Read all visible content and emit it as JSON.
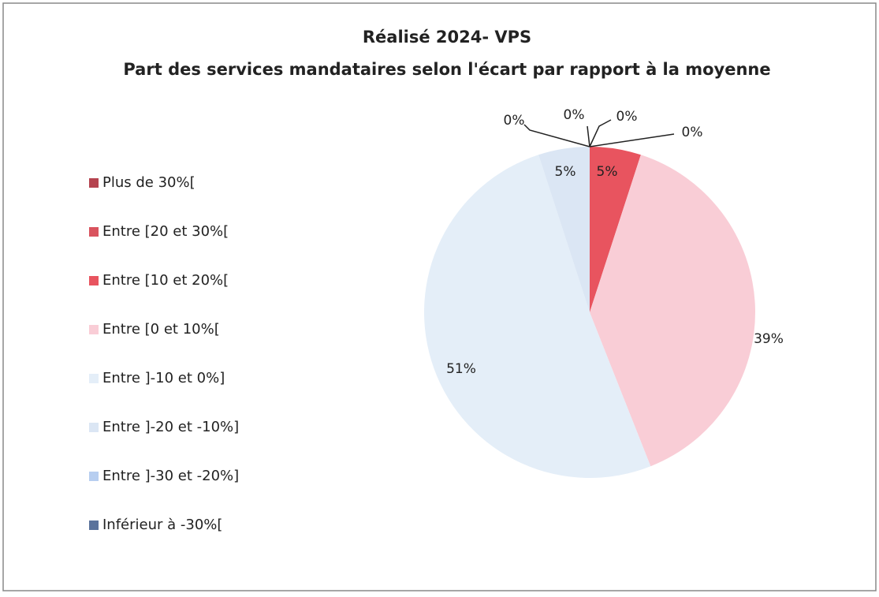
{
  "chart_data": {
    "type": "pie",
    "title": "Réalisé 2024- VPS",
    "subtitle": "Part des services mandataires selon l'écart par rapport à la moyenne",
    "categories": [
      "Plus de 30%[",
      "Entre [20 et 30%[",
      "Entre [10 et 20%[",
      "Entre [0 et 10%[",
      "Entre ]-10 et 0%]",
      "Entre ]-20 et -10%]",
      "Entre ]-30 et -20%]",
      "Inférieur à -30%["
    ],
    "values": [
      0,
      0,
      5,
      39,
      51,
      5,
      0,
      0
    ],
    "value_labels": [
      "0%",
      "0%",
      "5%",
      "39%",
      "51%",
      "5%",
      "0%",
      "0%"
    ],
    "colors": [
      "#b5434f",
      "#d9535e",
      "#e8545f",
      "#f9cdd6",
      "#e4eef8",
      "#dbe6f4",
      "#b7cef0",
      "#5b739c"
    ],
    "legend": "left"
  }
}
